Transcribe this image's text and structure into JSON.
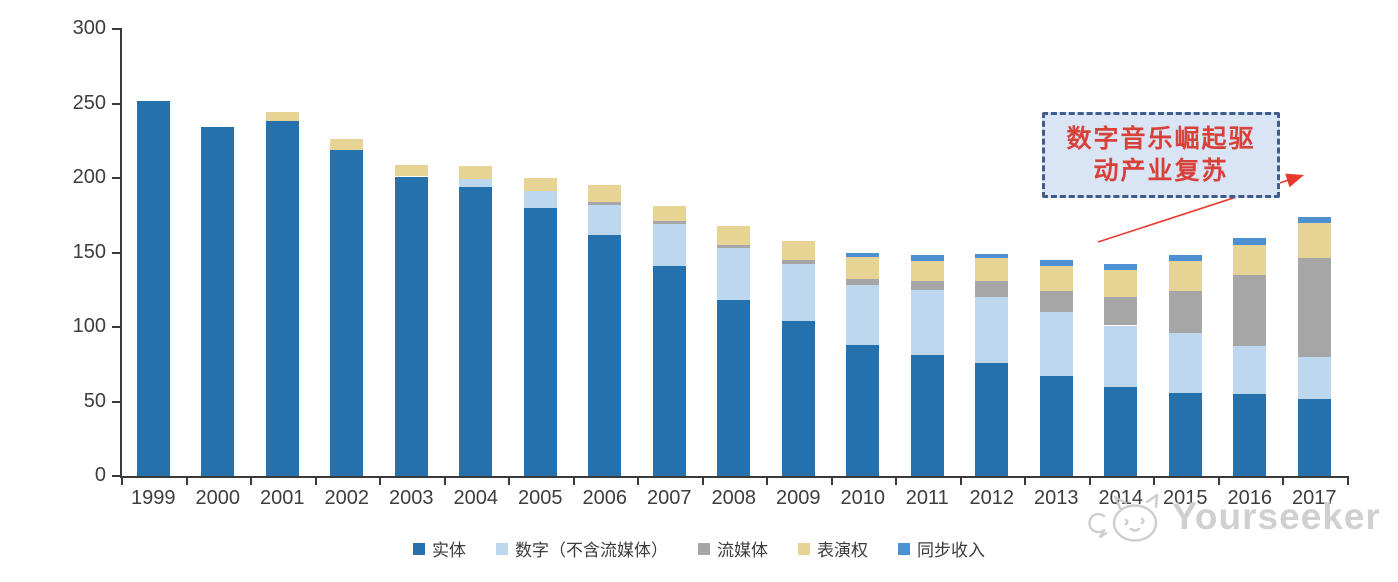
{
  "chart_data": {
    "type": "bar",
    "stacked": true,
    "title": "",
    "xlabel": "",
    "ylabel": "",
    "categories": [
      "1999",
      "2000",
      "2001",
      "2002",
      "2003",
      "2004",
      "2005",
      "2006",
      "2007",
      "2008",
      "2009",
      "2010",
      "2011",
      "2012",
      "2013",
      "2014",
      "2015",
      "2016",
      "2017"
    ],
    "series": [
      {
        "name": "实体",
        "color": "#2471AE",
        "values": [
          252,
          234,
          238,
          219,
          201,
          194,
          180,
          162,
          141,
          118,
          104,
          88,
          81,
          76,
          67,
          60,
          56,
          55,
          52
        ]
      },
      {
        "name": "数字（不含流媒体）",
        "color": "#BDD7EE",
        "values": [
          0,
          0,
          0,
          0,
          0,
          5,
          11,
          20,
          28,
          35,
          38,
          40,
          44,
          44,
          43,
          41,
          40,
          32,
          28
        ]
      },
      {
        "name": "流媒体",
        "color": "#A6A6A6",
        "values": [
          0,
          0,
          0,
          0,
          0,
          0,
          0,
          2,
          2,
          2,
          3,
          4,
          6,
          11,
          14,
          19,
          28,
          48,
          66
        ]
      },
      {
        "name": "表演权",
        "color": "#E7D494",
        "values": [
          0,
          0,
          6,
          7,
          8,
          9,
          9,
          11,
          10,
          13,
          13,
          15,
          13,
          15,
          17,
          18,
          20,
          20,
          24
        ]
      },
      {
        "name": "同步收入",
        "color": "#4E91D2",
        "values": [
          0,
          0,
          0,
          0,
          0,
          0,
          0,
          0,
          0,
          0,
          0,
          3,
          4,
          3,
          4,
          4,
          4,
          5,
          4
        ]
      }
    ],
    "totals": [
      252,
      234,
      244,
      226,
      209,
      208,
      200,
      195,
      181,
      168,
      158,
      150,
      148,
      149,
      145,
      142,
      148,
      160,
      174
    ],
    "ylim": [
      0,
      300
    ],
    "yticks": [
      0,
      50,
      100,
      150,
      200,
      250,
      300
    ],
    "grid": false,
    "legend_position": "bottom",
    "axis_color": "#3a3a3a"
  },
  "annotation": {
    "line1": "数字音乐崛起驱",
    "line2": "动产业复苏",
    "full_text": "数字音乐崛起驱动产业复苏",
    "text_color": "#D8403A",
    "box_fill": "#D9E5F4",
    "box_border": "#3F5C8C",
    "arrow_color": "#E8392E"
  },
  "watermark": {
    "text": "Yourseeker",
    "logo": "cat-mascot-icon",
    "color": "#CBCBCB"
  }
}
